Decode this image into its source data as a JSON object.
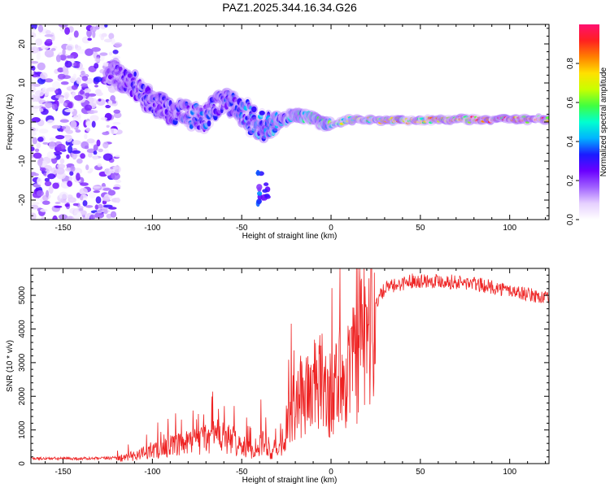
{
  "figure": {
    "title": "PAZ1.2025.344.16.34.G26"
  },
  "chart_data": [
    {
      "type": "heatmap",
      "name": "spectrogram",
      "xlabel": "Height of straight line (km)",
      "ylabel": "Frequency (Hz)",
      "xlim": [
        -168,
        122
      ],
      "ylim": [
        -25,
        25
      ],
      "xticks": [
        -150,
        -100,
        -50,
        0,
        50,
        100
      ],
      "yticks": [
        -20,
        -10,
        0,
        10,
        20
      ],
      "colorbar": {
        "label": "Normalized spectral amplitude",
        "range": [
          0,
          1
        ],
        "ticks": [
          0.0,
          0.2,
          0.4,
          0.6,
          0.8
        ],
        "tick_labels": [
          "0.0",
          "0.2",
          "0.4",
          "0.6",
          "0.8"
        ],
        "colors": [
          "#ffffff",
          "#e6d0ff",
          "#a060ff",
          "#6a00ff",
          "#1b1bff",
          "#00b4ff",
          "#00ffd0",
          "#40ff40",
          "#c8ff00",
          "#ffe000",
          "#ff8000",
          "#ff2020",
          "#ff1070"
        ]
      },
      "ridge": [
        {
          "x": -120,
          "y": 12,
          "v": 0.25
        },
        {
          "x": -110,
          "y": 9,
          "v": 0.3
        },
        {
          "x": -100,
          "y": 5,
          "v": 0.3
        },
        {
          "x": -90,
          "y": 3,
          "v": 0.3
        },
        {
          "x": -80,
          "y": 2,
          "v": 0.35
        },
        {
          "x": -70,
          "y": 1,
          "v": 0.35
        },
        {
          "x": -60,
          "y": 6,
          "v": 0.35
        },
        {
          "x": -50,
          "y": 3,
          "v": 0.4
        },
        {
          "x": -40,
          "y": -1,
          "v": 0.4
        },
        {
          "x": -30,
          "y": 0,
          "v": 0.45
        },
        {
          "x": -20,
          "y": 2,
          "v": 0.5
        },
        {
          "x": -10,
          "y": 1,
          "v": 0.55
        },
        {
          "x": 0,
          "y": -1,
          "v": 0.6
        },
        {
          "x": 10,
          "y": 0.5,
          "v": 0.7
        },
        {
          "x": 30,
          "y": 0.5,
          "v": 0.75
        },
        {
          "x": 50,
          "y": 0.5,
          "v": 0.8
        },
        {
          "x": 70,
          "y": 0.7,
          "v": 0.9
        },
        {
          "x": 100,
          "y": 0.7,
          "v": 0.95
        },
        {
          "x": 122,
          "y": 0.7,
          "v": 0.95
        }
      ],
      "noise_region_x": [
        -168,
        -125
      ],
      "secondary_feature": {
        "x": -38,
        "y": -17,
        "v": 0.35
      }
    },
    {
      "type": "line",
      "name": "snr",
      "xlabel": "Height of straight line (km)",
      "ylabel": "SNR (10 * v/v)",
      "xlim": [
        -168,
        122
      ],
      "ylim": [
        0,
        5800
      ],
      "xticks": [
        -150,
        -100,
        -50,
        0,
        50,
        100
      ],
      "yticks": [
        0,
        1000,
        2000,
        3000,
        4000,
        5000
      ],
      "color": "#ee2222",
      "envelope": [
        {
          "x": -168,
          "y": 150
        },
        {
          "x": -130,
          "y": 150
        },
        {
          "x": -115,
          "y": 200
        },
        {
          "x": -100,
          "y": 450
        },
        {
          "x": -80,
          "y": 700
        },
        {
          "x": -65,
          "y": 1000
        },
        {
          "x": -55,
          "y": 800
        },
        {
          "x": -45,
          "y": 450
        },
        {
          "x": -38,
          "y": 800
        },
        {
          "x": -33,
          "y": 350
        },
        {
          "x": -28,
          "y": 700
        },
        {
          "x": -22,
          "y": 1800
        },
        {
          "x": -15,
          "y": 2500
        },
        {
          "x": -5,
          "y": 2800
        },
        {
          "x": 0,
          "y": 2300
        },
        {
          "x": 5,
          "y": 3100
        },
        {
          "x": 12,
          "y": 3300
        },
        {
          "x": 20,
          "y": 4400
        },
        {
          "x": 30,
          "y": 5300
        },
        {
          "x": 45,
          "y": 5550
        },
        {
          "x": 60,
          "y": 5550
        },
        {
          "x": 80,
          "y": 5450
        },
        {
          "x": 100,
          "y": 5250
        },
        {
          "x": 122,
          "y": 5000
        }
      ]
    }
  ]
}
